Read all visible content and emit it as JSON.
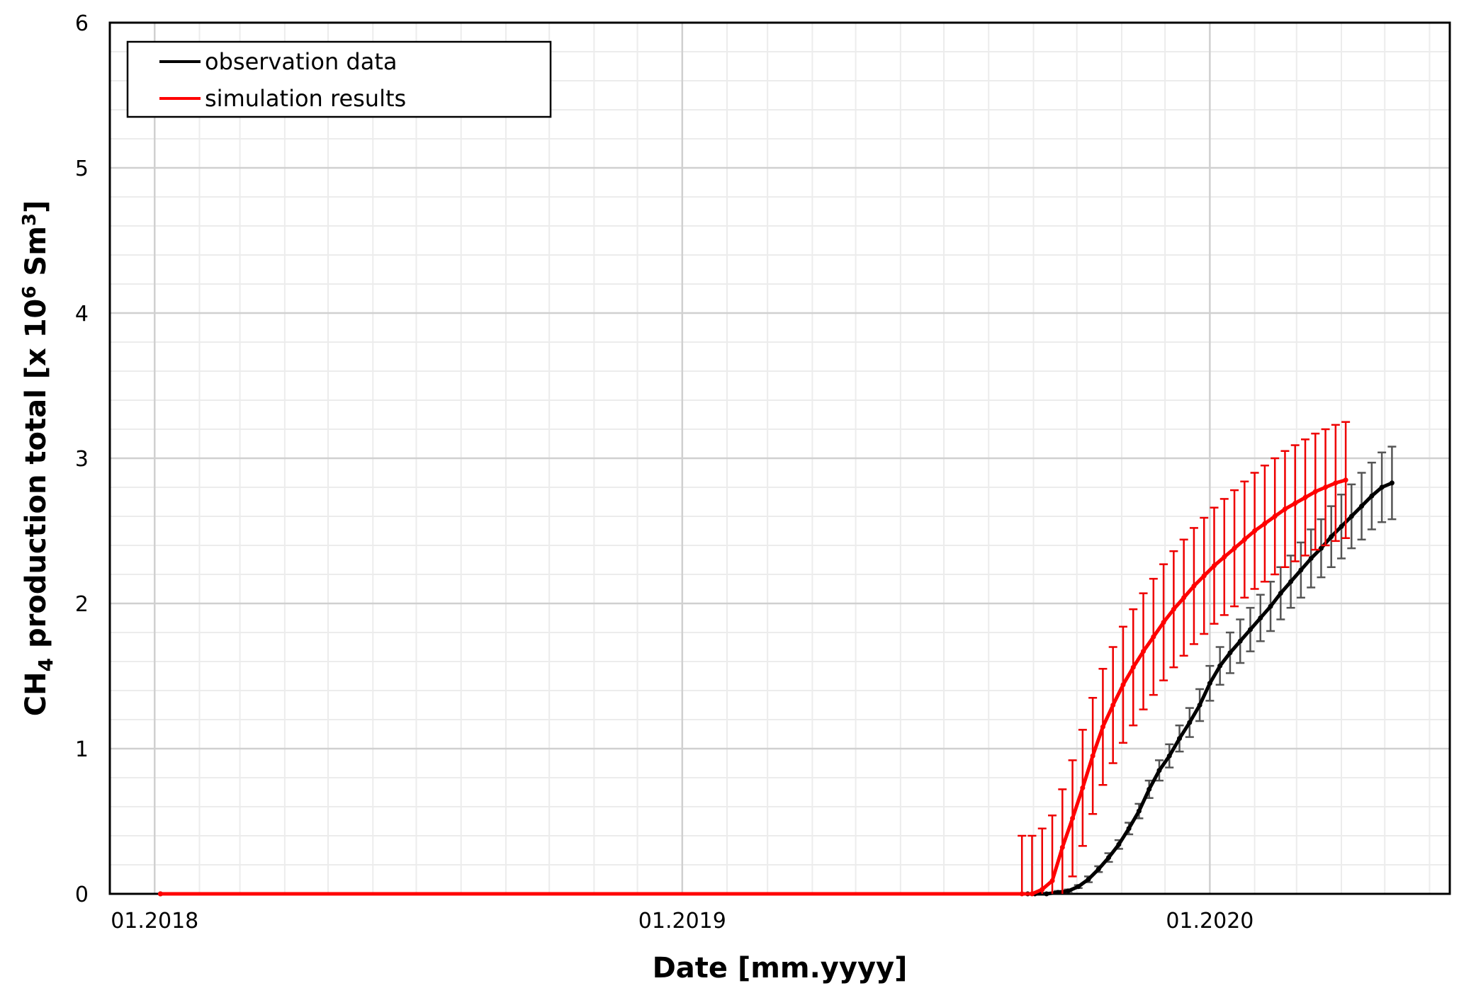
{
  "chart_data": {
    "type": "line",
    "title": "",
    "xlabel": "Date [mm.yyyy]",
    "ylabel": {
      "prefix": "CH",
      "sub": "4",
      "middle": " production total [x 10",
      "sup1": "6",
      "middle2": " Sm",
      "sup2": "3",
      "suffix": "]"
    },
    "xlim": [
      "2017-12-01",
      "2020-06-15"
    ],
    "ylim": [
      0,
      6
    ],
    "x_tick_labels": [
      "01.2018",
      "01.2019",
      "01.2020"
    ],
    "x_tick_dates": [
      "2018-01-01",
      "2019-01-01",
      "2020-01-01"
    ],
    "y_ticks": [
      0,
      1,
      2,
      3,
      4,
      5,
      6
    ],
    "grid": true,
    "legend_position": "top-left",
    "series": [
      {
        "name": "observation data",
        "color": "#000000",
        "error_color": "#555555",
        "points": [
          {
            "x": "2018-01-05",
            "y": 0,
            "err": 0
          },
          {
            "x": "2019-08-28",
            "y": 0,
            "err": 0
          },
          {
            "x": "2019-09-02",
            "y": 0,
            "err": 0
          },
          {
            "x": "2019-09-10",
            "y": 0,
            "err": 0
          },
          {
            "x": "2019-09-18",
            "y": 0.01,
            "err": 0.01
          },
          {
            "x": "2019-09-25",
            "y": 0.02,
            "err": 0.01
          },
          {
            "x": "2019-10-02",
            "y": 0.05,
            "err": 0.01
          },
          {
            "x": "2019-10-09",
            "y": 0.1,
            "err": 0.02
          },
          {
            "x": "2019-10-16",
            "y": 0.17,
            "err": 0.02
          },
          {
            "x": "2019-10-23",
            "y": 0.25,
            "err": 0.03
          },
          {
            "x": "2019-10-30",
            "y": 0.34,
            "err": 0.03
          },
          {
            "x": "2019-11-06",
            "y": 0.45,
            "err": 0.04
          },
          {
            "x": "2019-11-13",
            "y": 0.57,
            "err": 0.05
          },
          {
            "x": "2019-11-20",
            "y": 0.72,
            "err": 0.06
          },
          {
            "x": "2019-11-27",
            "y": 0.85,
            "err": 0.07
          },
          {
            "x": "2019-12-04",
            "y": 0.95,
            "err": 0.08
          },
          {
            "x": "2019-12-11",
            "y": 1.07,
            "err": 0.09
          },
          {
            "x": "2019-12-18",
            "y": 1.18,
            "err": 0.1
          },
          {
            "x": "2019-12-25",
            "y": 1.3,
            "err": 0.11
          },
          {
            "x": "2020-01-01",
            "y": 1.45,
            "err": 0.12
          },
          {
            "x": "2020-01-08",
            "y": 1.57,
            "err": 0.13
          },
          {
            "x": "2020-01-15",
            "y": 1.66,
            "err": 0.14
          },
          {
            "x": "2020-01-22",
            "y": 1.74,
            "err": 0.15
          },
          {
            "x": "2020-01-29",
            "y": 1.82,
            "err": 0.15
          },
          {
            "x": "2020-02-05",
            "y": 1.9,
            "err": 0.16
          },
          {
            "x": "2020-02-12",
            "y": 1.98,
            "err": 0.17
          },
          {
            "x": "2020-02-19",
            "y": 2.07,
            "err": 0.18
          },
          {
            "x": "2020-02-26",
            "y": 2.15,
            "err": 0.18
          },
          {
            "x": "2020-03-04",
            "y": 2.23,
            "err": 0.19
          },
          {
            "x": "2020-03-11",
            "y": 2.31,
            "err": 0.2
          },
          {
            "x": "2020-03-18",
            "y": 2.38,
            "err": 0.2
          },
          {
            "x": "2020-03-25",
            "y": 2.46,
            "err": 0.21
          },
          {
            "x": "2020-04-01",
            "y": 2.53,
            "err": 0.22
          },
          {
            "x": "2020-04-08",
            "y": 2.6,
            "err": 0.22
          },
          {
            "x": "2020-04-15",
            "y": 2.67,
            "err": 0.23
          },
          {
            "x": "2020-04-22",
            "y": 2.74,
            "err": 0.23
          },
          {
            "x": "2020-04-29",
            "y": 2.8,
            "err": 0.24
          },
          {
            "x": "2020-05-06",
            "y": 2.83,
            "err": 0.25
          }
        ]
      },
      {
        "name": "simulation results",
        "color": "#ff0000",
        "error_color": "#ee0000",
        "points": [
          {
            "x": "2018-01-05",
            "y": 0,
            "err": 0
          },
          {
            "x": "2019-08-24",
            "y": 0,
            "err": 0.4
          },
          {
            "x": "2019-08-31",
            "y": 0,
            "err": 0.4
          },
          {
            "x": "2019-09-07",
            "y": 0.03,
            "err": 0.42
          },
          {
            "x": "2019-09-14",
            "y": 0.09,
            "err": 0.45
          },
          {
            "x": "2019-09-21",
            "y": 0.32,
            "err": 0.4
          },
          {
            "x": "2019-09-28",
            "y": 0.52,
            "err": 0.4
          },
          {
            "x": "2019-10-05",
            "y": 0.73,
            "err": 0.4
          },
          {
            "x": "2019-10-12",
            "y": 0.95,
            "err": 0.4
          },
          {
            "x": "2019-10-19",
            "y": 1.15,
            "err": 0.4
          },
          {
            "x": "2019-10-26",
            "y": 1.3,
            "err": 0.4
          },
          {
            "x": "2019-11-02",
            "y": 1.44,
            "err": 0.4
          },
          {
            "x": "2019-11-09",
            "y": 1.56,
            "err": 0.4
          },
          {
            "x": "2019-11-16",
            "y": 1.67,
            "err": 0.4
          },
          {
            "x": "2019-11-23",
            "y": 1.77,
            "err": 0.4
          },
          {
            "x": "2019-11-30",
            "y": 1.87,
            "err": 0.4
          },
          {
            "x": "2019-12-07",
            "y": 1.96,
            "err": 0.4
          },
          {
            "x": "2019-12-14",
            "y": 2.04,
            "err": 0.4
          },
          {
            "x": "2019-12-21",
            "y": 2.12,
            "err": 0.4
          },
          {
            "x": "2019-12-28",
            "y": 2.19,
            "err": 0.4
          },
          {
            "x": "2020-01-04",
            "y": 2.26,
            "err": 0.4
          },
          {
            "x": "2020-01-11",
            "y": 2.32,
            "err": 0.4
          },
          {
            "x": "2020-01-18",
            "y": 2.38,
            "err": 0.4
          },
          {
            "x": "2020-01-25",
            "y": 2.44,
            "err": 0.4
          },
          {
            "x": "2020-02-01",
            "y": 2.5,
            "err": 0.4
          },
          {
            "x": "2020-02-08",
            "y": 2.55,
            "err": 0.4
          },
          {
            "x": "2020-02-15",
            "y": 2.6,
            "err": 0.4
          },
          {
            "x": "2020-02-22",
            "y": 2.65,
            "err": 0.4
          },
          {
            "x": "2020-02-29",
            "y": 2.69,
            "err": 0.4
          },
          {
            "x": "2020-03-07",
            "y": 2.73,
            "err": 0.4
          },
          {
            "x": "2020-03-14",
            "y": 2.77,
            "err": 0.4
          },
          {
            "x": "2020-03-21",
            "y": 2.8,
            "err": 0.4
          },
          {
            "x": "2020-03-28",
            "y": 2.83,
            "err": 0.4
          },
          {
            "x": "2020-04-04",
            "y": 2.85,
            "err": 0.4
          }
        ]
      }
    ]
  }
}
